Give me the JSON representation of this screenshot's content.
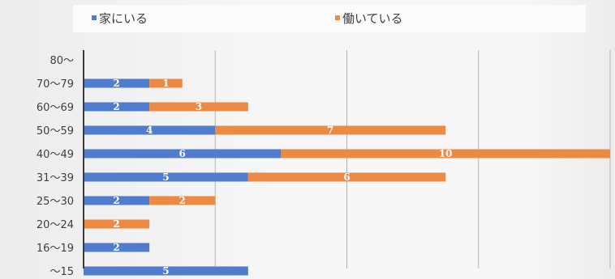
{
  "colors": {
    "at_home": "#4f7ccc",
    "working": "#ec8a44",
    "label": "#ffffff",
    "axis": "#3a3a3a",
    "grid": "#b5b5b5"
  },
  "chart_data": {
    "type": "bar",
    "orientation": "horizontal",
    "stacked": true,
    "title": "",
    "xlabel": "",
    "ylabel": "",
    "xlim": [
      0,
      16
    ],
    "grid": true,
    "legend": "top",
    "categories": [
      "80〜",
      "70〜79",
      "60〜69",
      "50〜59",
      "40〜49",
      "31〜39",
      "25〜30",
      "20〜24",
      "16〜19",
      "〜15"
    ],
    "series": [
      {
        "name": "家にいる",
        "values": [
          null,
          2,
          2,
          4,
          6,
          5,
          2,
          null,
          2,
          5
        ]
      },
      {
        "name": "働いている",
        "values": [
          null,
          1,
          3,
          7,
          10,
          6,
          2,
          2,
          null,
          null
        ]
      }
    ]
  }
}
